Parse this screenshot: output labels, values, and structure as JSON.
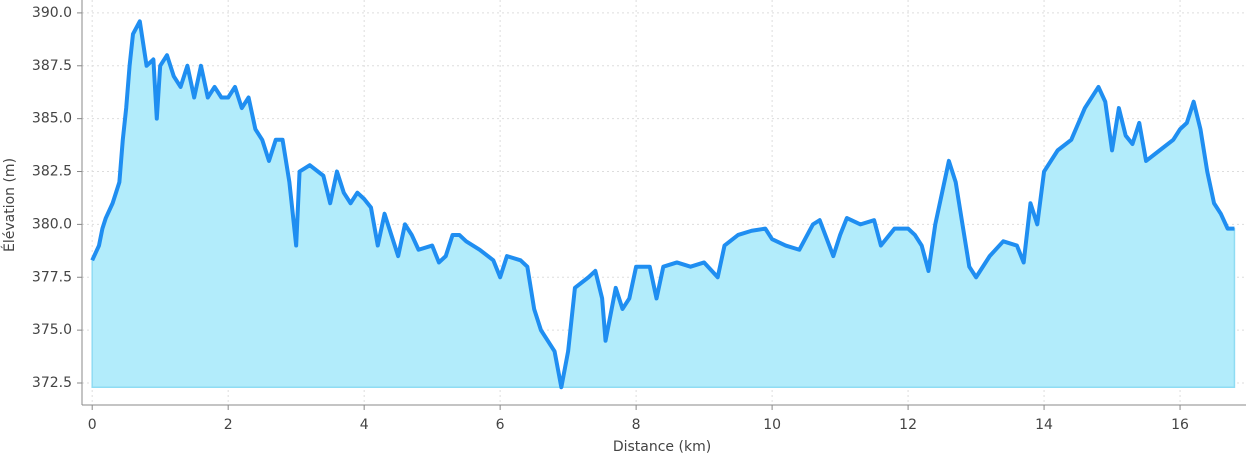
{
  "chart_data": {
    "type": "area",
    "xlabel": "Distance (km)",
    "ylabel": "Élévation (m)",
    "color": "#1f8ef1",
    "fill_color": "#b2ecfb",
    "x": [
      0,
      0.1,
      0.15,
      0.2,
      0.3,
      0.4,
      0.45,
      0.5,
      0.55,
      0.6,
      0.7,
      0.8,
      0.9,
      0.95,
      1.0,
      1.1,
      1.2,
      1.3,
      1.4,
      1.5,
      1.6,
      1.7,
      1.8,
      1.9,
      2.0,
      2.1,
      2.2,
      2.3,
      2.4,
      2.5,
      2.6,
      2.7,
      2.8,
      2.9,
      3.0,
      3.05,
      3.2,
      3.4,
      3.5,
      3.6,
      3.7,
      3.8,
      3.9,
      4.0,
      4.1,
      4.2,
      4.3,
      4.4,
      4.5,
      4.6,
      4.7,
      4.8,
      5.0,
      5.1,
      5.2,
      5.3,
      5.4,
      5.5,
      5.7,
      5.9,
      6.0,
      6.1,
      6.3,
      6.4,
      6.5,
      6.6,
      6.7,
      6.8,
      6.9,
      7.0,
      7.1,
      7.3,
      7.4,
      7.5,
      7.55,
      7.7,
      7.8,
      7.9,
      8.0,
      8.2,
      8.3,
      8.4,
      8.6,
      8.8,
      9.0,
      9.2,
      9.3,
      9.5,
      9.7,
      9.9,
      10.0,
      10.2,
      10.4,
      10.6,
      10.7,
      10.9,
      11.0,
      11.1,
      11.3,
      11.5,
      11.6,
      11.8,
      12.0,
      12.1,
      12.2,
      12.3,
      12.4,
      12.5,
      12.6,
      12.7,
      12.8,
      12.9,
      13.0,
      13.2,
      13.4,
      13.6,
      13.7,
      13.8,
      13.9,
      14.0,
      14.2,
      14.4,
      14.6,
      14.8,
      14.9,
      15.0,
      15.1,
      15.2,
      15.3,
      15.4,
      15.5,
      15.7,
      15.9,
      16.0,
      16.1,
      16.2,
      16.3,
      16.4,
      16.5,
      16.6,
      16.7,
      16.8
    ],
    "values": [
      378.3,
      379.0,
      379.8,
      380.3,
      381.0,
      382.0,
      384.0,
      385.5,
      387.5,
      389.0,
      389.6,
      387.5,
      387.8,
      385.0,
      387.5,
      388.0,
      387.0,
      386.5,
      387.5,
      386.0,
      387.5,
      386.0,
      386.5,
      386.0,
      386.0,
      386.5,
      385.5,
      386.0,
      384.5,
      384.0,
      383.0,
      384.0,
      384.0,
      382.0,
      379.0,
      382.5,
      382.8,
      382.3,
      381.0,
      382.5,
      381.5,
      381.0,
      381.5,
      381.2,
      380.8,
      379.0,
      380.5,
      379.5,
      378.5,
      380.0,
      379.5,
      378.8,
      379.0,
      378.2,
      378.5,
      379.5,
      379.5,
      379.2,
      378.8,
      378.3,
      377.5,
      378.5,
      378.3,
      378.0,
      376.0,
      375.0,
      374.5,
      374.0,
      372.3,
      374.0,
      377.0,
      377.5,
      377.8,
      376.5,
      374.5,
      377.0,
      376.0,
      376.5,
      378.0,
      378.0,
      376.5,
      378.0,
      378.2,
      378.0,
      378.2,
      377.5,
      379.0,
      379.5,
      379.7,
      379.8,
      379.3,
      379.0,
      378.8,
      380.0,
      380.2,
      378.5,
      379.5,
      380.3,
      380.0,
      380.2,
      379.0,
      379.8,
      379.8,
      379.5,
      379.0,
      377.8,
      380.0,
      381.5,
      383.0,
      382.0,
      380.0,
      378.0,
      377.5,
      378.5,
      379.2,
      379.0,
      378.2,
      381.0,
      380.0,
      382.5,
      383.5,
      384.0,
      385.5,
      386.5,
      385.8,
      383.5,
      385.5,
      384.2,
      383.8,
      384.8,
      383.0,
      383.5,
      384.0,
      384.5,
      384.8,
      385.8,
      384.5,
      382.5,
      381.0,
      380.5,
      379.8,
      379.8
    ],
    "xlim": [
      -0.15,
      16.97
    ],
    "ylim": [
      371.46,
      390.61
    ],
    "xticks": [
      0,
      2,
      4,
      6,
      8,
      10,
      12,
      14,
      16
    ],
    "yticks": [
      {
        "value": 372.5,
        "label": "372.5"
      },
      {
        "value": 375,
        "label": "375.0"
      },
      {
        "value": 377.5,
        "label": "377.5"
      },
      {
        "value": 380,
        "label": "380.0"
      },
      {
        "value": 382.5,
        "label": "382.5"
      },
      {
        "value": 385,
        "label": "385.0"
      },
      {
        "value": 387.5,
        "label": "387.5"
      },
      {
        "value": 390,
        "label": "390.0"
      }
    ],
    "grid": true
  }
}
